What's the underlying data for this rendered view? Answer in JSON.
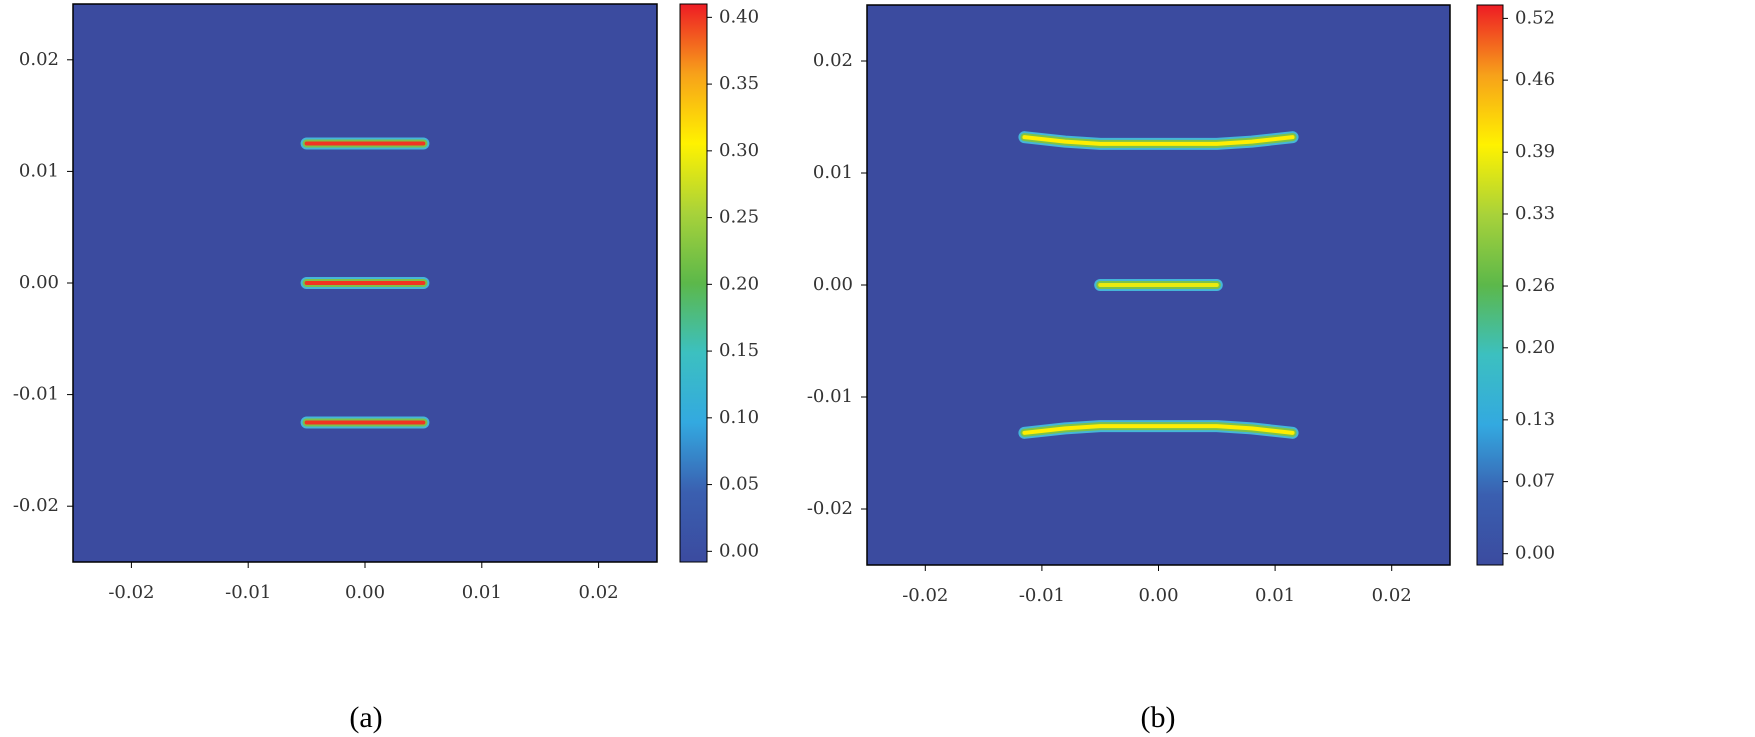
{
  "chart_data": [
    {
      "type": "contour",
      "title": "(a)",
      "xlim": [
        -0.025,
        0.025
      ],
      "ylim": [
        -0.025,
        0.025
      ],
      "xticks": [
        -0.02,
        -0.01,
        {
          "value": 0,
          "label": "0.00"
        },
        0.01,
        0.02
      ],
      "yticks": [
        -0.02,
        -0.01,
        {
          "value": 0,
          "label": "0.00"
        },
        0.01,
        0.02
      ],
      "clim": [
        -0.008,
        0.41
      ],
      "cticks": [
        {
          "value": 0,
          "label": "0.00"
        },
        0.05,
        {
          "value": 0.1,
          "label": "0.10"
        },
        0.15,
        {
          "value": 0.2,
          "label": "0.20"
        },
        0.25,
        {
          "value": 0.3,
          "label": "0.30"
        },
        0.35,
        {
          "value": 0.4,
          "label": "0.40"
        }
      ],
      "colormap": [
        "#3b4b9f",
        "#3a5fb0",
        "#33a9e0",
        "#3cc0c0",
        "#5cb84a",
        "#a8d23a",
        "#fff200",
        "#f7a11a",
        "#ee1c24"
      ],
      "series": [
        {
          "x": [
            -0.005,
            0.005
          ],
          "y": [
            0.0125,
            0.0125
          ],
          "value": 0.4
        },
        {
          "x": [
            -0.005,
            0.005
          ],
          "y": [
            0,
            0
          ],
          "value": 0.4
        },
        {
          "x": [
            -0.005,
            0.005
          ],
          "y": [
            -0.0125,
            -0.0125
          ],
          "value": 0.4
        }
      ]
    },
    {
      "type": "contour",
      "title": "(b)",
      "xlim": [
        -0.025,
        0.025
      ],
      "ylim": [
        -0.025,
        0.025
      ],
      "xticks": [
        -0.02,
        -0.01,
        {
          "value": 0,
          "label": "0.00"
        },
        0.01,
        0.02
      ],
      "yticks": [
        -0.02,
        -0.01,
        {
          "value": 0,
          "label": "0.00"
        },
        0.01,
        0.02
      ],
      "clim": [
        -0.011,
        0.533
      ],
      "cticks": [
        {
          "value": 0,
          "label": "0.00"
        },
        0.07,
        0.13,
        {
          "value": 0.2,
          "label": "0.20"
        },
        0.26,
        0.33,
        0.39,
        0.46,
        0.52
      ],
      "colormap": [
        "#3b4b9f",
        "#3a5fb0",
        "#33a9e0",
        "#3cc0c0",
        "#5cb84a",
        "#a8d23a",
        "#fff200",
        "#f7a11a",
        "#ee1c24"
      ],
      "series": [
        {
          "x": [
            -0.0115,
            -0.008,
            -0.005,
            0.005,
            0.008,
            0.0115
          ],
          "y": [
            0.0132,
            0.0128,
            0.0126,
            0.0126,
            0.0128,
            0.0132
          ],
          "value": 0.4
        },
        {
          "x": [
            -0.005,
            0.005
          ],
          "y": [
            0,
            0
          ],
          "value": 0.38
        },
        {
          "x": [
            -0.0115,
            -0.008,
            -0.005,
            0.005,
            0.008,
            0.0115
          ],
          "y": [
            -0.0132,
            -0.0128,
            -0.0126,
            -0.0126,
            -0.0128,
            -0.0132
          ],
          "value": 0.4
        }
      ]
    }
  ]
}
